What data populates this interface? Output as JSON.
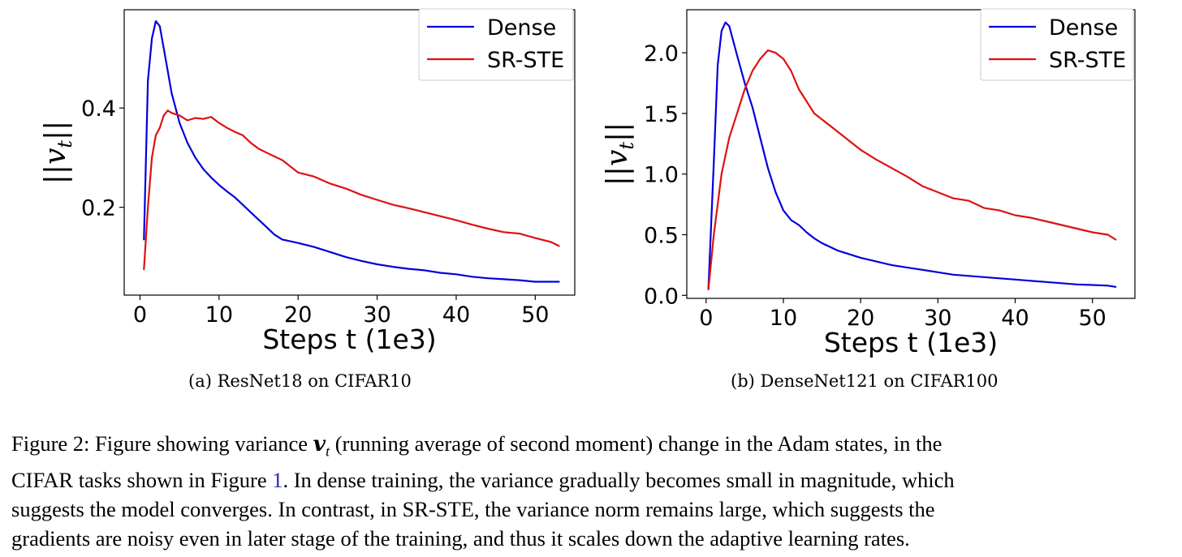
{
  "chart_data": [
    {
      "type": "line",
      "subcaption": "(a) ResNet18 on CIFAR10",
      "xlabel": "Steps t (1e3)",
      "ylabel": "||v_t||",
      "xlim": [
        -2,
        55
      ],
      "ylim": [
        0.023,
        0.598
      ],
      "xticks": [
        0,
        10,
        20,
        30,
        40,
        50
      ],
      "xtick_labels": [
        "0",
        "10",
        "20",
        "30",
        "40",
        "50"
      ],
      "yticks": [
        0.2,
        0.4
      ],
      "ytick_labels": [
        "0.2",
        "0.4"
      ],
      "grid": false,
      "legend_position": "upper-right",
      "series": [
        {
          "name": "Dense",
          "color": "#0000dd",
          "x": [
            0.5,
            1,
            1.5,
            2,
            2.5,
            3,
            3.5,
            4,
            5,
            6,
            7,
            8,
            9,
            10,
            11,
            12,
            13,
            14,
            15,
            16,
            17,
            18,
            20,
            22,
            24,
            26,
            28,
            30,
            32,
            34,
            36,
            38,
            40,
            42,
            44,
            46,
            48,
            50,
            52,
            53
          ],
          "y": [
            0.135,
            0.455,
            0.54,
            0.575,
            0.565,
            0.52,
            0.475,
            0.43,
            0.37,
            0.33,
            0.3,
            0.277,
            0.26,
            0.245,
            0.232,
            0.22,
            0.205,
            0.19,
            0.175,
            0.16,
            0.145,
            0.135,
            0.128,
            0.12,
            0.11,
            0.1,
            0.092,
            0.085,
            0.08,
            0.076,
            0.073,
            0.068,
            0.065,
            0.06,
            0.057,
            0.055,
            0.053,
            0.05,
            0.05,
            0.05
          ]
        },
        {
          "name": "SR-STE",
          "color": "#dd1111",
          "x": [
            0.5,
            1,
            1.5,
            2,
            2.5,
            3,
            3.5,
            4,
            5,
            6,
            7,
            8,
            9,
            10,
            11,
            12,
            13,
            14,
            15,
            16,
            18,
            20,
            22,
            24,
            26,
            28,
            30,
            32,
            34,
            36,
            38,
            40,
            42,
            44,
            46,
            48,
            50,
            52,
            53
          ],
          "y": [
            0.075,
            0.2,
            0.3,
            0.345,
            0.36,
            0.385,
            0.395,
            0.39,
            0.385,
            0.375,
            0.38,
            0.378,
            0.382,
            0.37,
            0.36,
            0.352,
            0.345,
            0.33,
            0.318,
            0.31,
            0.295,
            0.27,
            0.262,
            0.248,
            0.238,
            0.225,
            0.215,
            0.205,
            0.198,
            0.19,
            0.182,
            0.174,
            0.165,
            0.157,
            0.15,
            0.147,
            0.138,
            0.13,
            0.122
          ]
        }
      ]
    },
    {
      "type": "line",
      "subcaption": "(b) DenseNet121 on CIFAR100",
      "xlabel": "Steps t (1e3)",
      "ylabel": "||v_t||",
      "xlim": [
        -2.5,
        55.5
      ],
      "ylim": [
        -0.025,
        2.355
      ],
      "xticks": [
        0,
        10,
        20,
        30,
        40,
        50
      ],
      "xtick_labels": [
        "0",
        "10",
        "20",
        "30",
        "40",
        "50"
      ],
      "yticks": [
        0.0,
        0.5,
        1.0,
        1.5,
        2.0
      ],
      "ytick_labels": [
        "0.0",
        "0.5",
        "1.0",
        "1.5",
        "2.0"
      ],
      "grid": false,
      "legend_position": "upper-right",
      "series": [
        {
          "name": "Dense",
          "color": "#0000dd",
          "x": [
            0.3,
            1,
            1.5,
            2,
            2.5,
            3,
            3.5,
            4,
            5,
            6,
            7,
            8,
            9,
            10,
            11,
            12,
            13,
            14,
            15,
            16,
            17,
            18,
            20,
            22,
            24,
            26,
            28,
            30,
            32,
            34,
            36,
            38,
            40,
            42,
            44,
            46,
            48,
            50,
            52,
            53
          ],
          "y": [
            0.05,
            1.1,
            1.9,
            2.18,
            2.25,
            2.22,
            2.1,
            1.98,
            1.75,
            1.55,
            1.3,
            1.05,
            0.85,
            0.7,
            0.62,
            0.58,
            0.52,
            0.47,
            0.43,
            0.4,
            0.37,
            0.35,
            0.31,
            0.28,
            0.25,
            0.23,
            0.21,
            0.19,
            0.17,
            0.16,
            0.15,
            0.14,
            0.13,
            0.12,
            0.11,
            0.1,
            0.09,
            0.085,
            0.08,
            0.07
          ]
        },
        {
          "name": "SR-STE",
          "color": "#dd1111",
          "x": [
            0.3,
            1,
            2,
            3,
            4,
            5,
            6,
            7,
            8,
            9,
            10,
            11,
            12,
            13,
            14,
            15,
            16,
            17,
            18,
            20,
            22,
            24,
            26,
            28,
            30,
            32,
            34,
            36,
            38,
            40,
            42,
            44,
            46,
            48,
            50,
            52,
            53
          ],
          "y": [
            0.05,
            0.5,
            1.0,
            1.3,
            1.5,
            1.7,
            1.85,
            1.95,
            2.02,
            2.0,
            1.95,
            1.85,
            1.7,
            1.6,
            1.5,
            1.45,
            1.4,
            1.35,
            1.3,
            1.2,
            1.12,
            1.05,
            0.98,
            0.9,
            0.85,
            0.8,
            0.78,
            0.72,
            0.7,
            0.66,
            0.64,
            0.61,
            0.58,
            0.55,
            0.52,
            0.5,
            0.46
          ]
        }
      ]
    }
  ],
  "caption": {
    "lines": [
      {
        "segments": [
          {
            "text": "Figure 2: Figure showing variance "
          },
          {
            "text": "𝒗",
            "math": "bold-italic"
          },
          {
            "text": "t",
            "math": "subscript"
          },
          {
            "text": " (running average of second moment) change in the Adam states, in the"
          }
        ]
      },
      {
        "segments": [
          {
            "text": "CIFAR tasks shown in Figure "
          },
          {
            "text": "1",
            "ref": true
          },
          {
            "text": ". In dense training, the variance gradually becomes small in magnitude, which"
          }
        ]
      },
      {
        "segments": [
          {
            "text": "suggests the model converges. In contrast, in SR-STE, the variance norm remains large, which suggests the"
          }
        ]
      },
      {
        "segments": [
          {
            "text": "gradients are noisy even in later stage of the training, and thus it scales down the adaptive learning rates."
          }
        ]
      }
    ]
  }
}
